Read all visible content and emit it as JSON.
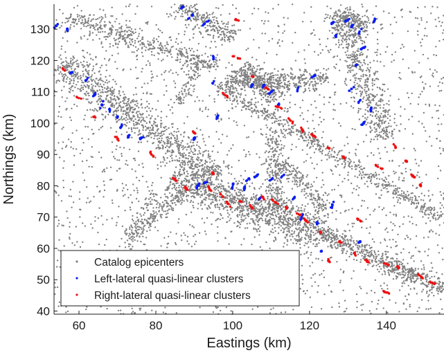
{
  "chart_data": {
    "type": "scatter",
    "xlabel": "Eastings (km)",
    "ylabel": "Northings (km)",
    "xlim": [
      53.5,
      155
    ],
    "ylim": [
      39,
      138
    ],
    "xticks": [
      60,
      80,
      100,
      120,
      140
    ],
    "yticks": [
      40,
      50,
      60,
      70,
      80,
      90,
      100,
      110,
      120,
      130
    ],
    "grid": false,
    "legend_position": "bottom-left",
    "series": [
      {
        "name": "Catalog epicenters",
        "color": "#808080",
        "marker": "dot",
        "bands": [
          {
            "from": [
              55,
              119
            ],
            "to": [
              96,
              83
            ],
            "width": 3.5,
            "density": 900
          },
          {
            "from": [
              84,
              83
            ],
            "to": [
              123,
              65
            ],
            "width": 4.2,
            "density": 1100
          },
          {
            "from": [
              123,
              65
            ],
            "to": [
              155,
              47
            ],
            "width": 2.2,
            "density": 550
          },
          {
            "from": [
              96,
              112
            ],
            "to": [
              154,
              70
            ],
            "width": 1.4,
            "density": 520
          },
          {
            "from": [
              127,
              136
            ],
            "to": [
              140,
              95
            ],
            "width": 2.6,
            "density": 520
          },
          {
            "from": [
              128,
              134
            ],
            "to": [
              136,
              130
            ],
            "width": 2.5,
            "density": 150
          },
          {
            "from": [
              98,
              113
            ],
            "to": [
              125,
              114
            ],
            "width": 2.4,
            "density": 420
          },
          {
            "from": [
              102,
              118
            ],
            "to": [
              112,
              108
            ],
            "width": 2.2,
            "density": 240
          },
          {
            "from": [
              57,
              134
            ],
            "to": [
              96,
              118
            ],
            "width": 2.2,
            "density": 420
          },
          {
            "from": [
              86,
              138
            ],
            "to": [
              100,
              127
            ],
            "width": 2,
            "density": 230
          },
          {
            "from": [
              111,
              98
            ],
            "to": [
              111,
              72
            ],
            "width": 1.8,
            "density": 230
          },
          {
            "from": [
              113,
              88
            ],
            "to": [
              124,
              72
            ],
            "width": 1.5,
            "density": 160
          },
          {
            "from": [
              73,
              63
            ],
            "to": [
              87,
              78
            ],
            "width": 1.5,
            "density": 170
          },
          {
            "from": [
              64,
              41
            ],
            "to": [
              80,
              78
            ],
            "width": 1.1,
            "density": 90
          },
          {
            "from": [
              86,
              106
            ],
            "to": [
              92,
              122
            ],
            "width": 1.4,
            "density": 90
          }
        ],
        "background": 2200
      },
      {
        "name": "Left-lateral quasi-linear clusters",
        "color": "#0a1ef0",
        "marker": "dot",
        "clusters": [
          [
            130,
            133
          ],
          [
            131,
            131
          ],
          [
            126,
            132
          ],
          [
            127,
            128
          ],
          [
            133,
            129
          ],
          [
            137,
            133
          ],
          [
            134,
            124
          ],
          [
            132,
            118
          ],
          [
            131,
            111
          ],
          [
            133,
            107
          ],
          [
            136,
            104
          ],
          [
            134,
            100
          ],
          [
            121,
            115
          ],
          [
            117,
            111
          ],
          [
            105,
            112
          ],
          [
            110,
            110
          ],
          [
            112,
            106
          ],
          [
            108,
            112
          ],
          [
            58,
            116
          ],
          [
            62,
            114
          ],
          [
            64,
            109
          ],
          [
            66,
            106
          ],
          [
            68,
            104
          ],
          [
            70,
            102
          ],
          [
            71,
            99
          ],
          [
            73,
            96
          ],
          [
            76,
            95
          ],
          [
            89,
            134
          ],
          [
            93,
            132
          ],
          [
            87,
            137
          ],
          [
            54,
            131
          ],
          [
            57,
            130
          ],
          [
            91,
            80
          ],
          [
            93,
            81
          ],
          [
            100,
            80
          ],
          [
            103,
            79
          ],
          [
            107,
            76
          ],
          [
            104,
            82
          ],
          [
            106,
            83
          ],
          [
            110,
            82
          ],
          [
            113,
            83
          ],
          [
            116,
            76
          ],
          [
            118,
            70
          ],
          [
            122,
            68
          ],
          [
            126,
            74
          ],
          [
            133,
            62
          ],
          [
            123,
            59
          ],
          [
            90,
            95
          ],
          [
            96,
            102
          ],
          [
            95,
            113
          ],
          [
            95,
            121
          ]
        ]
      },
      {
        "name": "Right-lateral quasi-linear clusters",
        "color": "#ee1111",
        "marker": "dot",
        "clusters": [
          [
            101,
            121
          ],
          [
            105,
            115
          ],
          [
            109,
            111
          ],
          [
            112,
            105
          ],
          [
            115,
            101
          ],
          [
            118,
            98
          ],
          [
            121,
            96
          ],
          [
            125,
            92
          ],
          [
            129,
            89
          ],
          [
            138,
            86
          ],
          [
            142,
            93
          ],
          [
            145,
            88
          ],
          [
            147,
            83
          ],
          [
            149,
            80
          ],
          [
            85,
            82
          ],
          [
            88,
            79
          ],
          [
            94,
            79
          ],
          [
            97,
            77
          ],
          [
            99,
            74
          ],
          [
            102,
            75
          ],
          [
            105,
            73
          ],
          [
            108,
            76
          ],
          [
            111,
            75
          ],
          [
            114,
            73
          ],
          [
            117,
            71
          ],
          [
            119,
            69
          ],
          [
            123,
            65
          ],
          [
            128,
            62
          ],
          [
            132,
            58
          ],
          [
            135,
            56
          ],
          [
            140,
            55
          ],
          [
            143,
            54
          ],
          [
            149,
            51
          ],
          [
            152,
            49
          ],
          [
            56,
            117
          ],
          [
            60,
            108
          ],
          [
            64,
            102
          ],
          [
            70,
            95
          ],
          [
            79,
            90
          ],
          [
            90,
            97
          ],
          [
            95,
            84
          ],
          [
            101,
            133
          ],
          [
            98,
            109
          ],
          [
            125,
            56
          ],
          [
            140,
            46
          ],
          [
            133,
            69
          ]
        ]
      }
    ]
  }
}
